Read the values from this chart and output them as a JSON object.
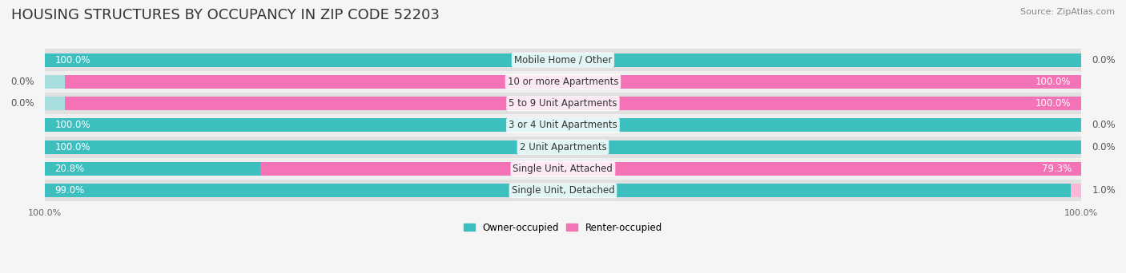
{
  "title": "HOUSING STRUCTURES BY OCCUPANCY IN ZIP CODE 52203",
  "source": "Source: ZipAtlas.com",
  "categories": [
    "Single Unit, Detached",
    "Single Unit, Attached",
    "2 Unit Apartments",
    "3 or 4 Unit Apartments",
    "5 to 9 Unit Apartments",
    "10 or more Apartments",
    "Mobile Home / Other"
  ],
  "owner_pct": [
    99.0,
    20.8,
    100.0,
    100.0,
    0.0,
    0.0,
    100.0
  ],
  "renter_pct": [
    1.0,
    79.3,
    0.0,
    0.0,
    100.0,
    100.0,
    0.0
  ],
  "owner_color": "#3dbfbf",
  "renter_color": "#f472b6",
  "owner_color_light": "#a8dede",
  "renter_color_light": "#f9b8d8",
  "bg_color": "#f5f5f5",
  "bar_bg_color": "#e8e8e8",
  "title_fontsize": 13,
  "label_fontsize": 8.5,
  "tick_fontsize": 8,
  "source_fontsize": 8,
  "legend_fontsize": 8.5,
  "bar_height": 0.62,
  "row_bg_colors": [
    "#e0e0e0",
    "#efefef"
  ]
}
